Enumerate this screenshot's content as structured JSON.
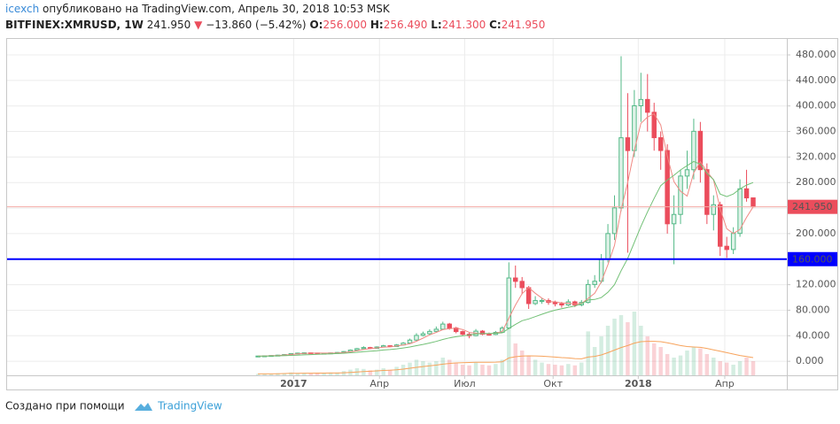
{
  "header": {
    "author": "icexch",
    "published": "опубликовано на TradingView.com, Апрель 30, 2018 10:53 MSK",
    "symbol": "BITFINEX:XMRUSD, 1W",
    "last": "241.950",
    "arrow": "▼",
    "change": "−13.860 (−5.42%)",
    "o_label": "O:",
    "o": "256.000",
    "h_label": "H:",
    "h": "256.490",
    "l_label": "L:",
    "l": "241.300",
    "c_label": "C:",
    "c": "241.950"
  },
  "footer": {
    "text": "Создано при помощи",
    "logo": "TradingView"
  },
  "chart_data": {
    "type": "candlestick",
    "open": [
      8.0,
      8.2,
      8.5,
      9.0,
      9.6,
      10.5,
      12.1,
      12.8,
      13.2,
      12.9,
      12.4,
      12.6,
      13.1,
      13.8,
      15.2,
      17.5,
      19.8,
      21.5,
      20.1,
      22.4,
      24.3,
      23.1,
      25.6,
      28.4,
      33.2,
      40.5,
      43.1,
      46.8,
      50.2,
      58.3,
      52.1,
      46.5,
      42.3,
      40.1,
      47.2,
      42.4,
      42.0,
      45.3,
      52.1,
      130.5,
      125.2,
      115.3,
      90.4,
      95.1,
      95.2,
      92.3,
      90.1,
      88.2,
      93.1,
      88.4,
      92.2,
      120.3,
      125.4,
      160.2,
      200.1,
      240.3,
      350.2,
      330.1,
      400.3,
      410.2,
      390.1,
      350.3,
      330.2,
      215.4,
      230.1,
      290.2,
      300.1,
      360.3,
      300.2,
      230.1,
      245.3,
      180.2,
      175.1,
      200.3,
      270.2,
      256.0
    ],
    "high": [
      8.6,
      8.9,
      9.4,
      10.1,
      11.0,
      12.6,
      13.5,
      13.9,
      13.7,
      13.3,
      13.1,
      13.6,
      14.4,
      16.0,
      18.5,
      21.0,
      23.5,
      22.6,
      23.4,
      25.8,
      25.1,
      27.0,
      30.2,
      35.5,
      44.0,
      46.5,
      50.0,
      54.5,
      62.0,
      60.1,
      54.0,
      48.2,
      44.5,
      50.5,
      48.9,
      45.0,
      47.5,
      55.0,
      155.0,
      150.0,
      132.0,
      118.0,
      102.0,
      99.0,
      98.5,
      95.0,
      93.0,
      97.0,
      95.0,
      96.0,
      128.0,
      135.0,
      168.0,
      215.0,
      260.0,
      478.0,
      420.0,
      425.0,
      452.0,
      450.0,
      405.0,
      360.0,
      340.0,
      260.0,
      300.0,
      330.0,
      380.0,
      375.0,
      310.0,
      260.0,
      250.0,
      195.0,
      210.0,
      285.0,
      300.0,
      256.49
    ],
    "low": [
      7.7,
      7.9,
      8.2,
      8.7,
      9.3,
      10.2,
      11.6,
      12.3,
      12.4,
      11.8,
      12.0,
      12.2,
      12.8,
      13.4,
      14.8,
      17.0,
      19.0,
      18.9,
      19.6,
      21.8,
      22.0,
      22.5,
      25.0,
      27.6,
      32.0,
      38.9,
      41.5,
      45.0,
      48.8,
      49.5,
      43.8,
      40.0,
      36.0,
      39.2,
      40.8,
      40.2,
      41.0,
      44.0,
      50.5,
      115.0,
      105.0,
      82.0,
      88.0,
      90.0,
      88.5,
      86.0,
      84.0,
      86.5,
      85.0,
      86.0,
      90.5,
      115.0,
      122.0,
      155.0,
      190.0,
      235.0,
      170.0,
      320.0,
      375.0,
      360.0,
      330.0,
      300.0,
      200.0,
      152.0,
      215.0,
      270.0,
      285.0,
      280.0,
      215.0,
      205.0,
      165.0,
      162.0,
      168.0,
      195.0,
      250.0,
      241.3
    ],
    "close": [
      8.2,
      8.5,
      9.0,
      9.6,
      10.5,
      12.1,
      12.8,
      13.2,
      12.9,
      12.4,
      12.6,
      13.1,
      13.8,
      15.2,
      17.5,
      19.8,
      21.5,
      20.1,
      22.4,
      24.3,
      23.1,
      25.6,
      28.4,
      33.2,
      40.5,
      43.1,
      46.8,
      50.2,
      58.3,
      52.1,
      46.5,
      42.3,
      40.1,
      47.2,
      42.4,
      42.0,
      45.3,
      52.1,
      130.5,
      125.2,
      115.3,
      90.4,
      95.1,
      95.2,
      92.3,
      90.1,
      88.2,
      93.1,
      88.4,
      92.2,
      120.3,
      125.4,
      160.2,
      200.1,
      240.3,
      350.2,
      330.1,
      400.3,
      410.2,
      390.1,
      350.3,
      330.2,
      215.4,
      230.1,
      290.2,
      300.1,
      360.3,
      300.2,
      230.1,
      245.3,
      180.2,
      175.1,
      200.3,
      270.2,
      256.0,
      241.95
    ],
    "up_color": "#53b987",
    "down_color": "#eb4d5c",
    "volume": [
      2,
      2,
      2,
      3,
      3,
      4,
      3,
      3,
      3,
      3,
      3,
      4,
      4,
      6,
      8,
      10,
      9,
      7,
      8,
      10,
      8,
      12,
      15,
      18,
      22,
      20,
      18,
      20,
      25,
      22,
      18,
      15,
      14,
      18,
      15,
      14,
      16,
      22,
      75,
      45,
      35,
      28,
      22,
      18,
      16,
      15,
      14,
      16,
      14,
      18,
      62,
      40,
      55,
      70,
      80,
      85,
      75,
      90,
      70,
      55,
      45,
      40,
      30,
      25,
      28,
      35,
      40,
      38,
      30,
      25,
      20,
      18,
      15,
      20,
      25,
      20
    ],
    "volume_lim": [
      0,
      100
    ],
    "lines": [
      {
        "color": "#f08a84",
        "values": [
          8,
          8.3,
          8.6,
          9.1,
          9.7,
          10.6,
          11.5,
          12.2,
          12.7,
          12.8,
          12.8,
          12.8,
          13.0,
          13.7,
          14.9,
          16.6,
          18.5,
          19.7,
          21,
          22,
          22.5,
          23.9,
          25.4,
          27.4,
          31.4,
          36.3,
          41.4,
          45.2,
          49.6,
          51.1,
          51.8,
          49.8,
          45.3,
          44,
          43,
          43,
          44.2,
          46.7,
          67.5,
          88.3,
          105.8,
          115.4,
          106.5,
          99,
          93.3,
          93.2,
          91.5,
          90.9,
          89.8,
          90.5,
          98.5,
          106.6,
          124.5,
          151.5,
          181.5,
          237.7,
          280.2,
          330.2,
          372.7,
          382.7,
          387.7,
          370.2,
          321.5,
          281.5,
          266.5,
          258.9,
          295.2,
          312.7,
          297.7,
          284,
          239,
          207.7,
          200.2,
          206.5,
          225.4,
          241.9
        ]
      },
      {
        "color": "#72c076",
        "values": [
          8,
          8.1,
          8.3,
          8.5,
          8.8,
          9.2,
          9.6,
          10.1,
          10.5,
          10.9,
          11.3,
          11.6,
          12.1,
          12.6,
          13.3,
          14.1,
          15,
          15.8,
          16.6,
          17.6,
          18.4,
          19.5,
          20.8,
          22.4,
          24.4,
          26.4,
          28.6,
          31.1,
          34.2,
          36.6,
          38.4,
          39.8,
          41.1,
          42.7,
          43.4,
          43.6,
          43.9,
          44.6,
          51.4,
          57.9,
          63.5,
          66.4,
          69.9,
          73.7,
          77.1,
          80.1,
          82.3,
          84.7,
          86.5,
          90.2,
          96,
          96.9,
          99.8,
          108.1,
          120,
          141.9,
          161.1,
          186.3,
          211.3,
          234.1,
          255.1,
          275.2,
          283.8,
          291.4,
          299.8,
          306.5,
          313.1,
          308.8,
          294.3,
          284.7,
          262,
          258,
          262,
          270,
          276,
          280
        ]
      },
      {
        "color": "#f7a35c",
        "axis": "volume",
        "values": [
          2,
          2,
          2,
          2.3,
          2.5,
          2.8,
          2.9,
          3,
          3,
          3.1,
          3.1,
          3.2,
          3.3,
          3.6,
          4.1,
          4.8,
          5.4,
          5.8,
          6.3,
          6.9,
          7.2,
          7.9,
          8.8,
          10,
          11.3,
          12.4,
          13.4,
          14.4,
          15.8,
          16.8,
          17.5,
          17.9,
          18.1,
          18.4,
          18.5,
          18.5,
          18.6,
          19,
          24.5,
          26.3,
          27.1,
          27.5,
          27.4,
          27,
          26.4,
          25.8,
          25,
          24.5,
          23.6,
          23.2,
          25.8,
          26.7,
          28.8,
          32,
          35.6,
          39.3,
          42,
          45.5,
          47.5,
          48,
          48,
          47.5,
          46,
          44,
          42,
          40.6,
          40,
          39.5,
          38,
          36,
          34,
          32,
          30,
          28,
          26.5,
          25
        ]
      }
    ],
    "hlines": [
      {
        "value": 160,
        "label": "160.000",
        "color": "#0000ff",
        "width": 2
      },
      {
        "value": 241.95,
        "label": "241.950",
        "color": "#f4aaa6",
        "width": 1,
        "box": "#eb4d5c"
      }
    ],
    "ylim": [
      -22,
      505
    ],
    "yticks": [
      {
        "value": 0,
        "label": "0.000"
      },
      {
        "value": 40,
        "label": "40.000"
      },
      {
        "value": 80,
        "label": "80.000"
      },
      {
        "value": 120,
        "label": "120.000"
      },
      {
        "value": 160,
        "label": "160.000"
      },
      {
        "value": 200,
        "label": "200.000"
      },
      {
        "value": 240,
        "label": "240.000"
      },
      {
        "value": 280,
        "label": "280.000"
      },
      {
        "value": 320,
        "label": "320.000"
      },
      {
        "value": 360,
        "label": "360.000"
      },
      {
        "value": 400,
        "label": "400.000"
      },
      {
        "value": 440,
        "label": "440.000"
      },
      {
        "value": 480,
        "label": "480.000"
      }
    ],
    "xlim": [
      -38,
      80.1
    ],
    "xticks": [
      {
        "value": 5.4,
        "label": "2017"
      },
      {
        "value": 18.4,
        "label": "Апр"
      },
      {
        "value": 31.3,
        "label": "Июл"
      },
      {
        "value": 44.7,
        "label": "Окт"
      },
      {
        "value": 57.6,
        "label": "2018"
      },
      {
        "value": 70.7,
        "label": "Апр"
      }
    ],
    "grid": true
  }
}
